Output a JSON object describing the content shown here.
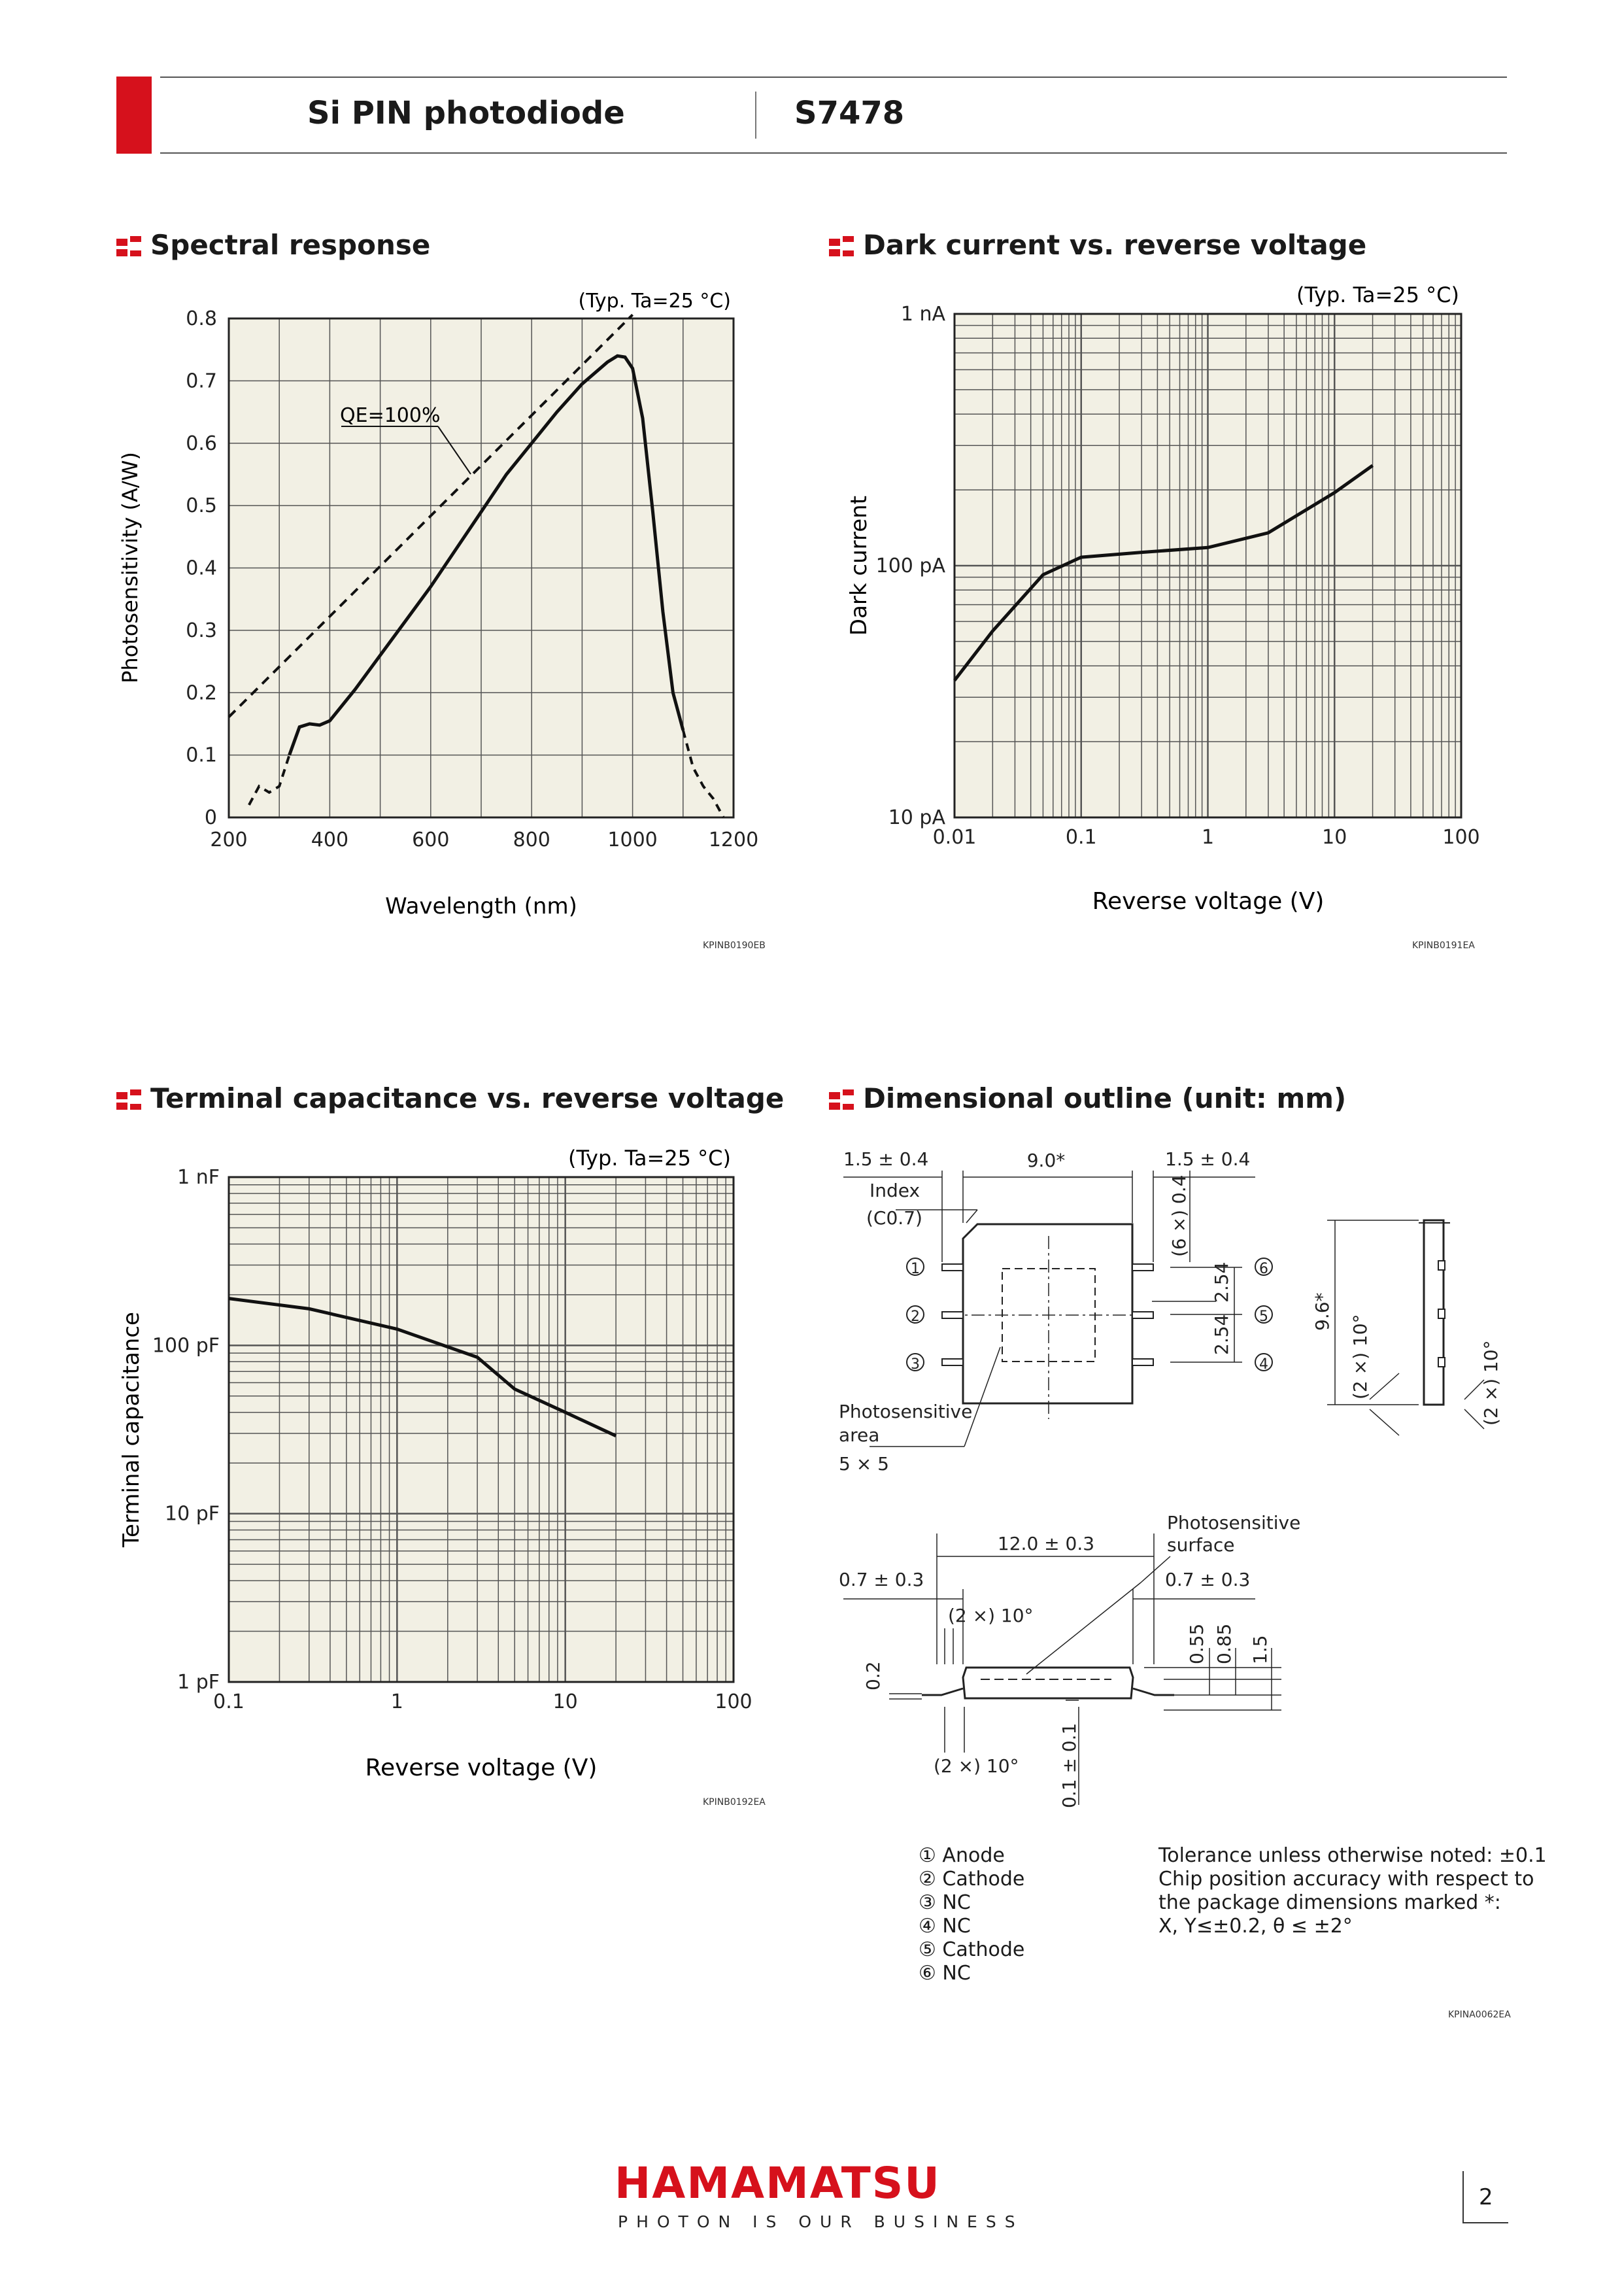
{
  "header": {
    "product_type": "Si PIN photodiode",
    "model": "S7478"
  },
  "sections": {
    "spectral": "Spectral response",
    "dark": "Dark current vs. reverse voltage",
    "cap": "Terminal capacitance vs. reverse voltage",
    "dim": "Dimensional outline (unit: mm)"
  },
  "colors": {
    "accent": "#d6111c",
    "plot_bg": "#f2f0e4",
    "grid": "#555555"
  },
  "charts": {
    "spectral": {
      "cond": "(Typ. Ta=25 °C)",
      "ylabel": "Photosensitivity (A/W)",
      "xlabel": "Wavelength (nm)",
      "annot": "QE=100%",
      "code": "KPINB0190EB",
      "xticks": [
        "200",
        "400",
        "600",
        "800",
        "1000",
        "1200"
      ],
      "yticks": [
        "0",
        "0.1",
        "0.2",
        "0.3",
        "0.4",
        "0.5",
        "0.6",
        "0.7",
        "0.8"
      ]
    },
    "dark": {
      "cond": "(Typ. Ta=25 °C)",
      "ylabel": "Dark current",
      "xlabel": "Reverse voltage (V)",
      "code": "KPINB0191EA",
      "xticks": [
        "0.01",
        "0.1",
        "1",
        "10",
        "100"
      ],
      "yticks": [
        "10 pA",
        "100 pA",
        "1 nA"
      ]
    },
    "cap": {
      "cond": "(Typ. Ta=25 °C)",
      "ylabel": "Terminal capacitance",
      "xlabel": "Reverse voltage (V)",
      "code": "KPINB0192EA",
      "xticks": [
        "0.1",
        "1",
        "10",
        "100"
      ],
      "yticks": [
        "1 pF",
        "10 pF",
        "100 pF",
        "1 nF"
      ]
    }
  },
  "chart_data": [
    {
      "type": "line",
      "title": "Spectral response",
      "xlabel": "Wavelength (nm)",
      "ylabel": "Photosensitivity (A/W)",
      "xlim": [
        200,
        1200
      ],
      "ylim": [
        0,
        0.8
      ],
      "series": [
        {
          "name": "S7478",
          "x": [
            240,
            260,
            280,
            300,
            320,
            340,
            360,
            380,
            400,
            450,
            500,
            550,
            600,
            650,
            700,
            750,
            800,
            850,
            900,
            950,
            970,
            985,
            1000,
            1020,
            1040,
            1060,
            1080,
            1100,
            1120,
            1140,
            1160,
            1180
          ],
          "y": [
            0.02,
            0.05,
            0.04,
            0.05,
            0.1,
            0.145,
            0.15,
            0.148,
            0.155,
            0.205,
            0.26,
            0.315,
            0.37,
            0.43,
            0.49,
            0.55,
            0.6,
            0.65,
            0.695,
            0.73,
            0.74,
            0.738,
            0.72,
            0.64,
            0.49,
            0.33,
            0.2,
            0.14,
            0.08,
            0.05,
            0.03,
            0.0
          ],
          "style": "solid/dashed tails"
        },
        {
          "name": "QE=100%",
          "x": [
            200,
            1000
          ],
          "y": [
            0.161,
            0.806
          ],
          "style": "dashed"
        }
      ]
    },
    {
      "type": "line",
      "title": "Dark current vs. reverse voltage",
      "xlabel": "Reverse voltage (V)",
      "ylabel": "Dark current (pA)",
      "xscale": "log",
      "yscale": "log",
      "xlim": [
        0.01,
        100
      ],
      "ylim": [
        10,
        1000
      ],
      "series": [
        {
          "name": "S7478",
          "x": [
            0.01,
            0.02,
            0.05,
            0.1,
            0.3,
            1,
            3,
            10,
            20
          ],
          "y": [
            35,
            55,
            92,
            108,
            113,
            118,
            135,
            195,
            250
          ]
        }
      ]
    },
    {
      "type": "line",
      "title": "Terminal capacitance vs. reverse voltage",
      "xlabel": "Reverse voltage (V)",
      "ylabel": "Terminal capacitance (pF)",
      "xscale": "log",
      "yscale": "log",
      "xlim": [
        0.1,
        100
      ],
      "ylim": [
        1,
        1000
      ],
      "series": [
        {
          "name": "S7478",
          "x": [
            0.1,
            0.3,
            1,
            3,
            5,
            10,
            20
          ],
          "y": [
            190,
            165,
            125,
            85,
            55,
            40,
            29
          ]
        }
      ]
    }
  ],
  "dim": {
    "d_lead_l": "1.5 ± 0.4",
    "d_width": "9.0*",
    "d_lead_r": "1.5 ± 0.4",
    "index": "Index",
    "chamfer": "(C0.7)",
    "pitch6": "(6 ×) 0.4",
    "p1": "2.54",
    "p2": "2.54",
    "height": "9.6*",
    "ang": "(2 ×) 10°",
    "ps_area": "Photosensitive",
    "ps_area2": "area",
    "ps_size": "5 × 5",
    "pins": [
      "1",
      "2",
      "3",
      "4",
      "5",
      "6"
    ],
    "s_len": "12.0 ± 0.3",
    "s_ps": "Photosensitive",
    "s_ps2": "surface",
    "s_l": "0.7 ± 0.3",
    "s_r": "0.7 ± 0.3",
    "s_ang": "(2 ×) 10°",
    "s_055": "0.55",
    "s_085": "0.85",
    "s_15": "1.5",
    "s_02": "0.2",
    "s_01": "0.1 ± 0.1",
    "code": "KPINA0062EA"
  },
  "pin_legend": [
    "① Anode",
    "② Cathode",
    "③ NC",
    "④ NC",
    "⑤ Cathode",
    "⑥ NC"
  ],
  "tolerance": [
    "Tolerance unless otherwise noted: ±0.1",
    "Chip position accuracy with respect to",
    "the package dimensions marked *:",
    "X, Y≤±0.2, θ ≤ ±2°"
  ],
  "footer": {
    "brand": "HAMAMATSU",
    "tagline": "PHOTON IS OUR BUSINESS",
    "page": "2"
  }
}
